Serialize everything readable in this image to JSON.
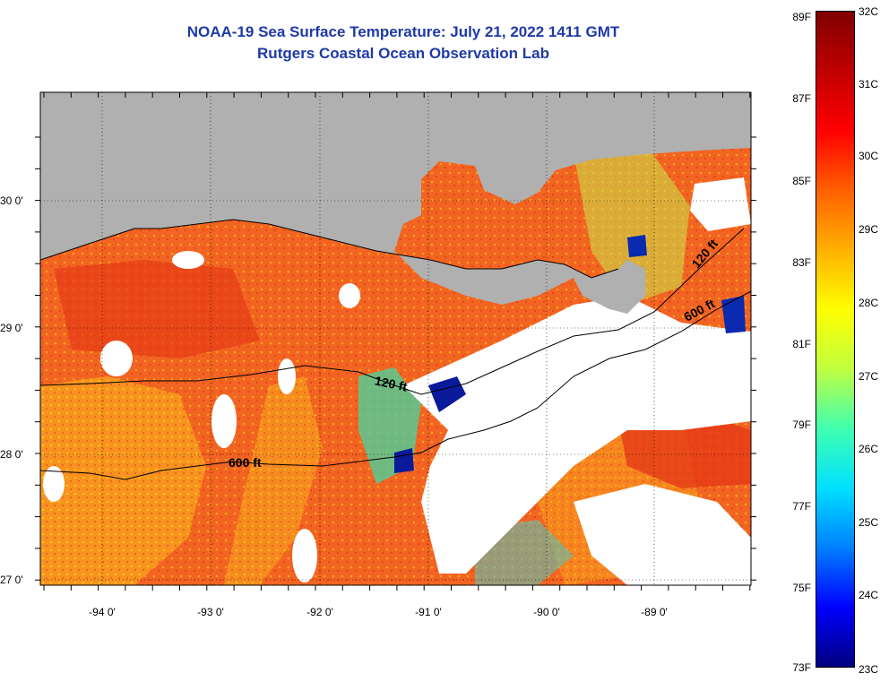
{
  "title": {
    "line1": "NOAA-19 Sea Surface Temperature:  July 21, 2022 1411 GMT",
    "line2": "Rutgers Coastal Ocean Observation Lab"
  },
  "axes": {
    "lat_labels": [
      "30 0'",
      "29 0'",
      "28 0'",
      "27 0'"
    ],
    "lon_labels": [
      "-94 0'",
      "-93 0'",
      "-92 0'",
      "-91 0'",
      "-90 0'",
      "-89 0'"
    ]
  },
  "contours": {
    "depth_120": "120 ft",
    "depth_600": "600 ft"
  },
  "colorbar": {
    "fahrenheit": [
      "89F",
      "87F",
      "85F",
      "83F",
      "81F",
      "79F",
      "77F",
      "75F",
      "73F"
    ],
    "celsius": [
      "32C",
      "31C",
      "30C",
      "29C",
      "28C",
      "27C",
      "26C",
      "25C",
      "24C",
      "23C"
    ],
    "colors": [
      "#000080",
      "#0000ff",
      "#0080ff",
      "#00e0ff",
      "#40ffb0",
      "#c0ff40",
      "#ffff00",
      "#ffb000",
      "#ff6000",
      "#ff0000",
      "#c00000",
      "#800000"
    ]
  },
  "colors": {
    "land": "#b0b0b0",
    "cloud": "#ffffff",
    "ocean_warm": "#f05a1e",
    "ocean_hot": "#e23a16"
  }
}
